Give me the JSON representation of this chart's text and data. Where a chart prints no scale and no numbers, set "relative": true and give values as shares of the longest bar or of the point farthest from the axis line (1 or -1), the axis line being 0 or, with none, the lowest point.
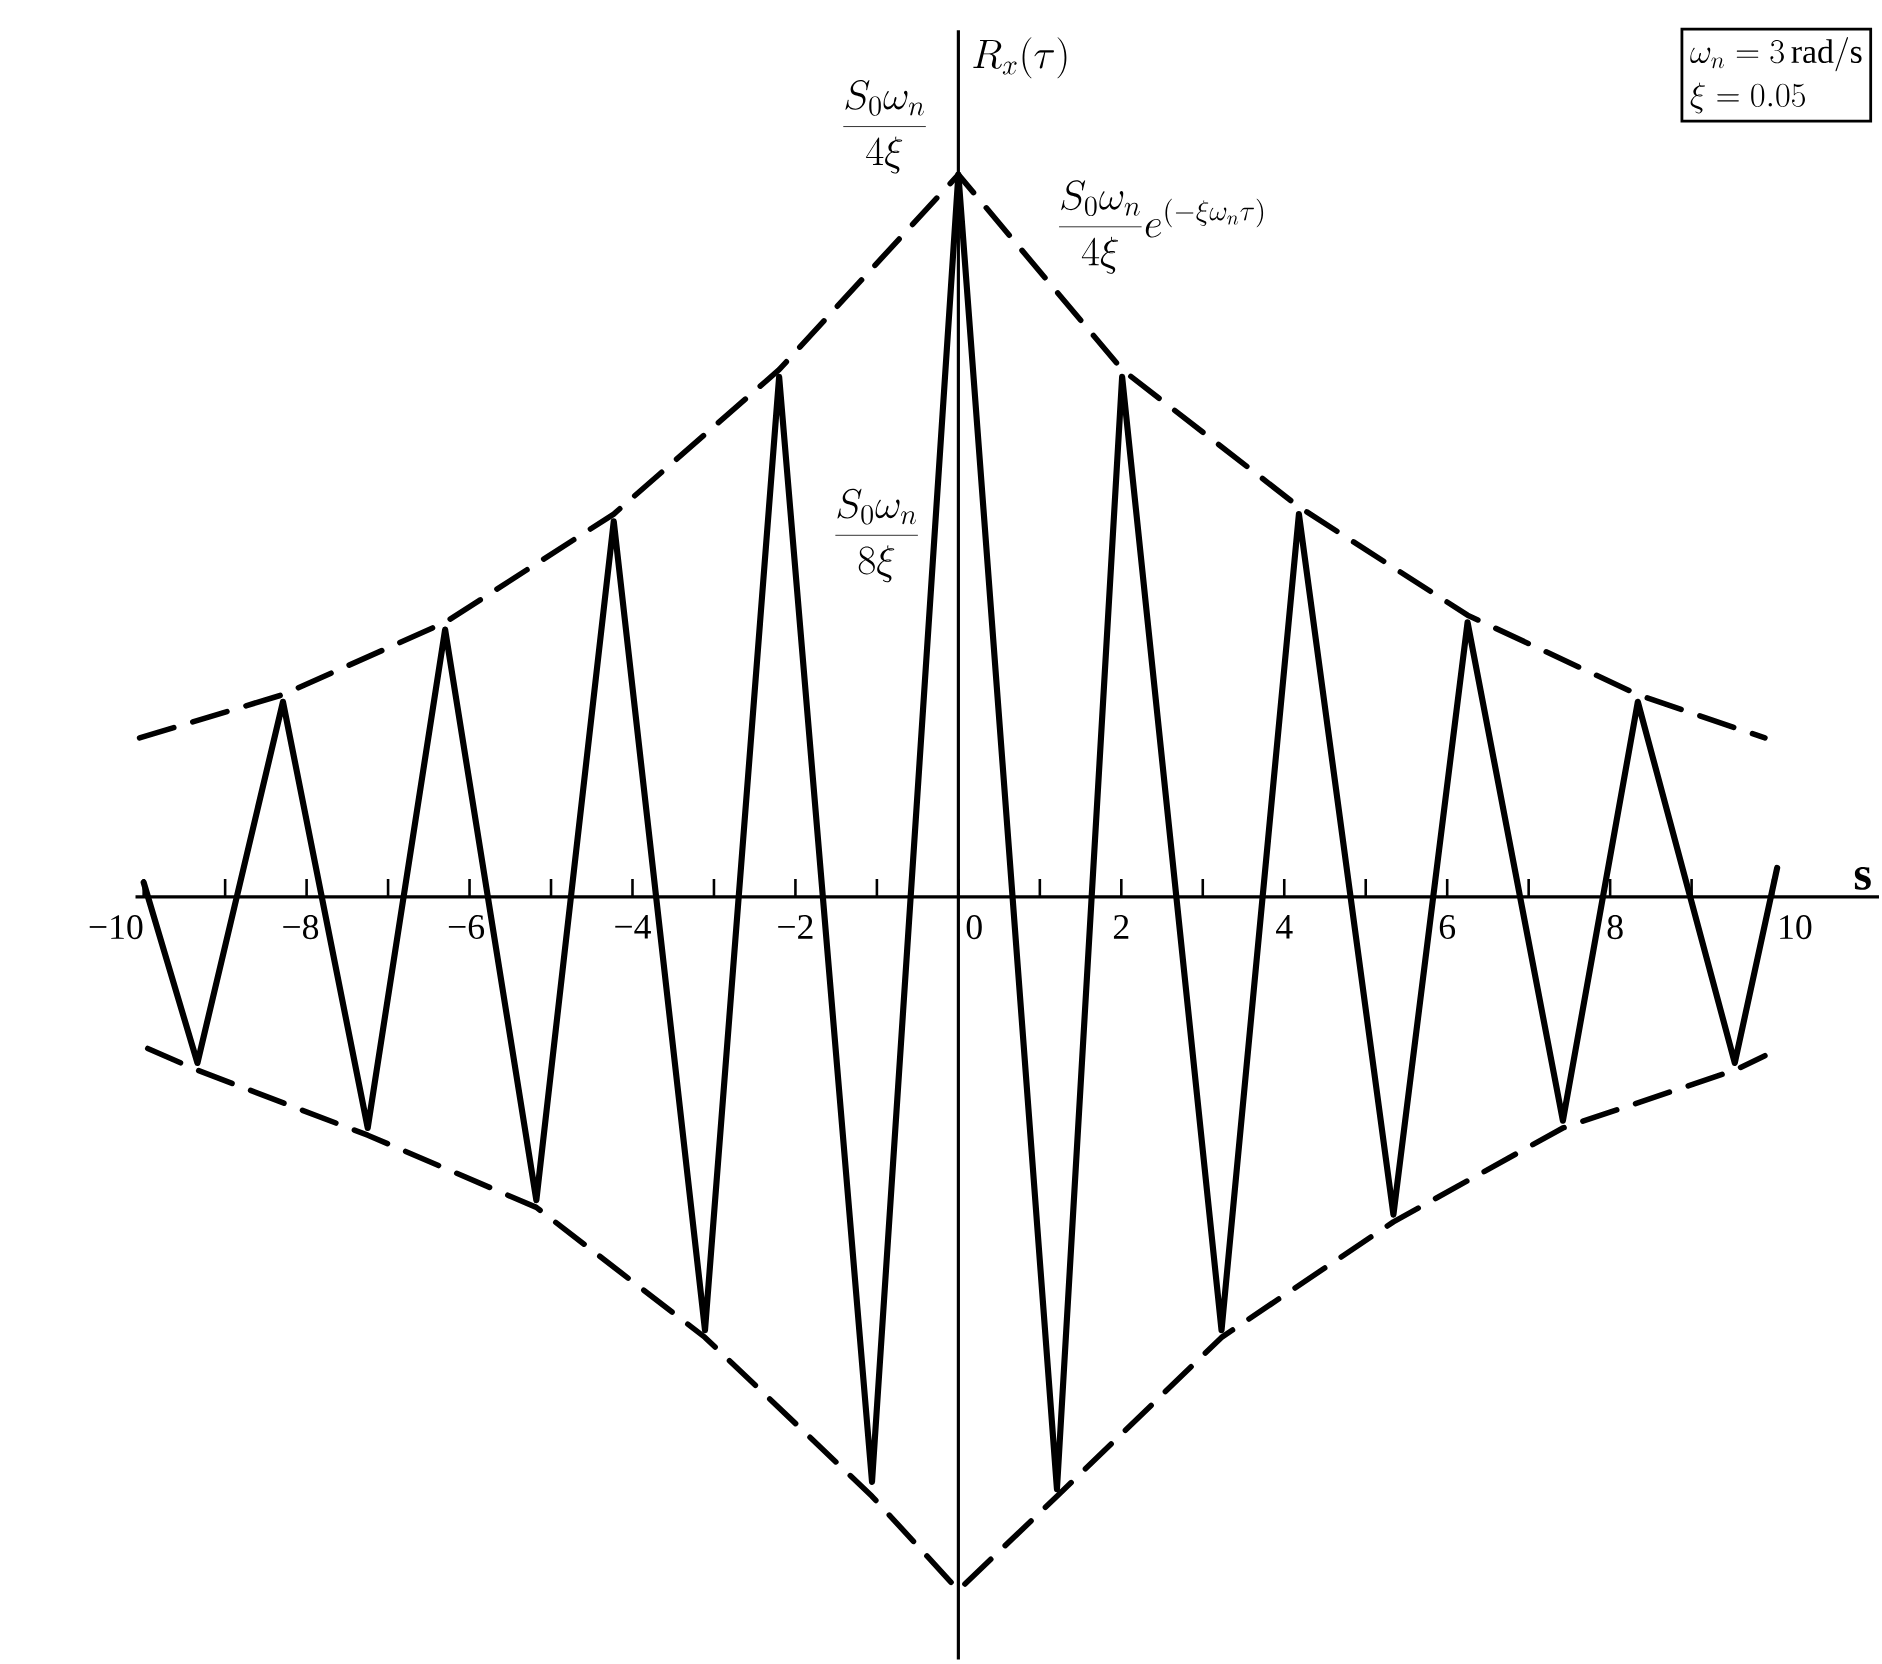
{
  "chart_data": {
    "type": "line",
    "relative": true,
    "xlabel": "s",
    "ylabel": "R_x(\\tau)",
    "xlim": [
      -10.1,
      11.3
    ],
    "xticks": [
      {
        "value": -10,
        "label": "−10"
      },
      {
        "value": -9,
        "label": null
      },
      {
        "value": -8,
        "label": "−8"
      },
      {
        "value": -7,
        "label": null
      },
      {
        "value": -6,
        "label": "−6"
      },
      {
        "value": -5,
        "label": null
      },
      {
        "value": -4,
        "label": "−4"
      },
      {
        "value": -3,
        "label": null
      },
      {
        "value": -2,
        "label": "−2"
      },
      {
        "value": -1,
        "label": null
      },
      0,
      {
        "value": 1,
        "label": null
      },
      2,
      {
        "value": 3,
        "label": null
      },
      4,
      {
        "value": 5,
        "label": null
      },
      6,
      {
        "value": 7,
        "label": null
      },
      8,
      {
        "value": 9,
        "label": null
      },
      10
    ],
    "series": [
      {
        "color": "#000000",
        "line_style": "solid",
        "x": [
          -10.0,
          -9.34,
          -8.29,
          -7.25,
          -6.3,
          -5.18,
          -4.23,
          -3.11,
          -2.2,
          -1.06,
          0,
          1.21,
          2.01,
          3.23,
          4.18,
          5.34,
          6.25,
          7.42,
          8.34,
          9.53,
          10.05
        ],
        "values": [
          0.02,
          -0.23,
          0.27,
          -0.32,
          0.37,
          -0.42,
          0.52,
          -0.6,
          0.72,
          -0.81,
          1,
          -0.82,
          0.72,
          -0.6,
          0.53,
          -0.44,
          0.38,
          -0.31,
          0.27,
          -0.23,
          0.04
        ]
      },
      {
        "color": "#000000",
        "line_style": "dashed",
        "x": [
          -10.05,
          -8.29,
          -6.3,
          -4.23,
          -2.2,
          0,
          2.01,
          4.18,
          6.25,
          8.34,
          9.9
        ],
        "values": [
          0.22,
          0.28,
          0.38,
          0.53,
          0.73,
          1,
          0.73,
          0.54,
          0.39,
          0.28,
          0.22
        ]
      },
      {
        "color": "#000000",
        "line_style": "dashed",
        "x": [
          -9.95,
          -9.34,
          -7.25,
          -5.18,
          -3.11,
          -1.06,
          0,
          1.21,
          3.23,
          5.34,
          7.42,
          9.53,
          9.9
        ],
        "values": [
          -0.21,
          -0.24,
          -0.33,
          -0.43,
          -0.61,
          -0.83,
          -0.96,
          -0.83,
          -0.61,
          -0.45,
          -0.32,
          -0.24,
          -0.22
        ]
      }
    ],
    "annotations": [
      {
        "text": "\\frac{S_0\\omega_n}{4\\xi}",
        "x": 0,
        "y": 1
      },
      "\\frac{S_0\\omega_n}{8\\xi}",
      {
        "text": "\\frac{S_0\\omega_n}{4\\xi}e^{(-\\xi\\omega_n\\tau)}",
        "x": 1.08,
        "y": 0.86
      },
      "\\omega_n=3\\,\\mathrm{rad/s}",
      "\\xi=0.05"
    ]
  }
}
